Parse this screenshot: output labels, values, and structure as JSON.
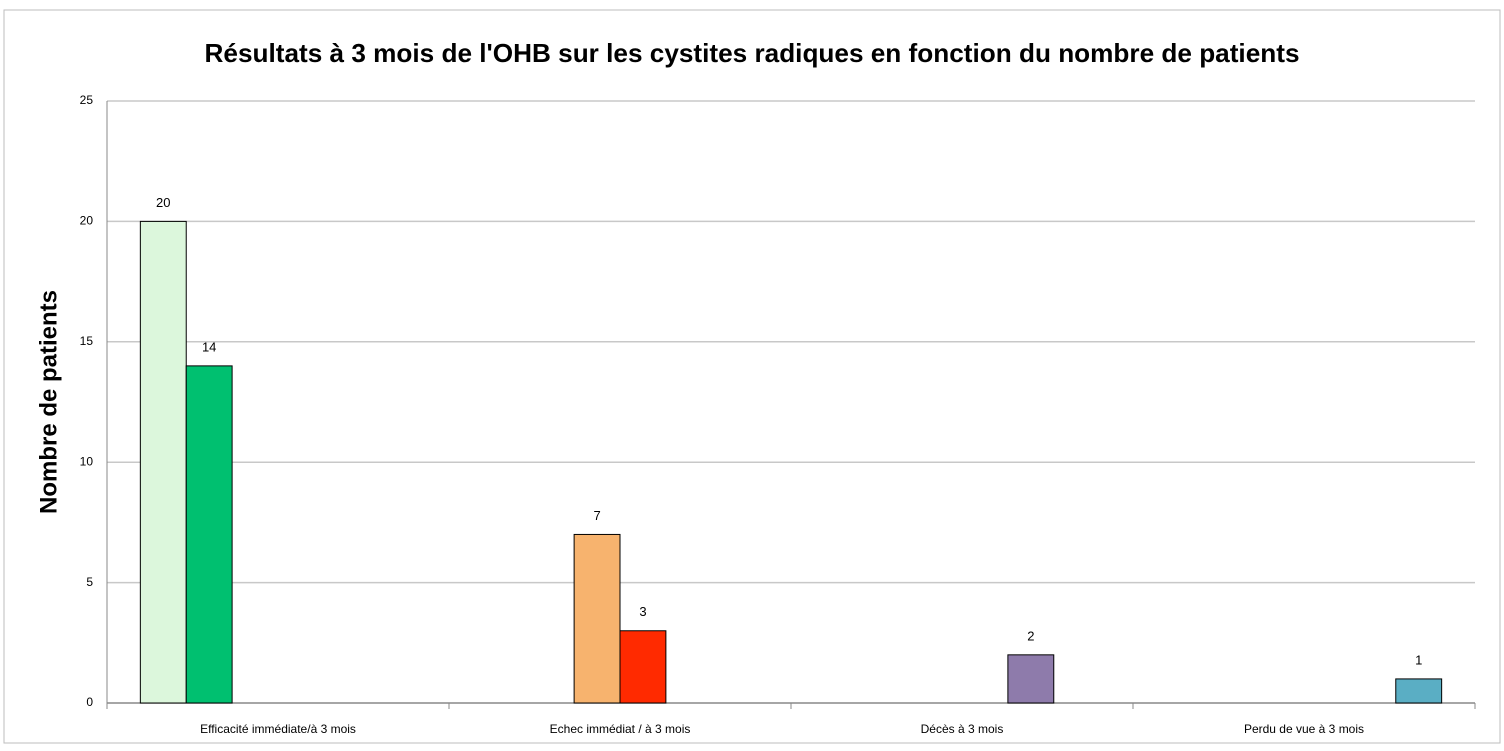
{
  "chart_data": {
    "type": "bar",
    "title": "Résultats à 3 mois de l'OHB sur les cystites radiques en fonction du nombre de patients",
    "y_label": "Nombre de patients",
    "categories": [
      "Efficacité immédiate/à 3 mois",
      "Echec immédiat / à 3 mois",
      "Décès à 3 mois",
      "Perdu de vue à 3 mois"
    ],
    "series": [
      {
        "color": "#dcf7dc",
        "values": [
          20,
          null,
          null,
          null
        ]
      },
      {
        "color": "#00c070",
        "values": [
          14,
          null,
          null,
          null
        ]
      },
      {
        "color": "#f7b36e",
        "values": [
          null,
          7,
          null,
          null
        ]
      },
      {
        "color": "#ff2a00",
        "values": [
          null,
          3,
          null,
          null
        ]
      },
      {
        "color": "#8e7bab",
        "values": [
          null,
          null,
          2,
          null
        ]
      },
      {
        "color": "#5aaec4",
        "values": [
          null,
          null,
          null,
          1
        ]
      }
    ],
    "ylim": [
      0,
      25
    ],
    "yticks": [
      0,
      5,
      10,
      15,
      20,
      25
    ],
    "grid": true,
    "data_labels": true
  }
}
